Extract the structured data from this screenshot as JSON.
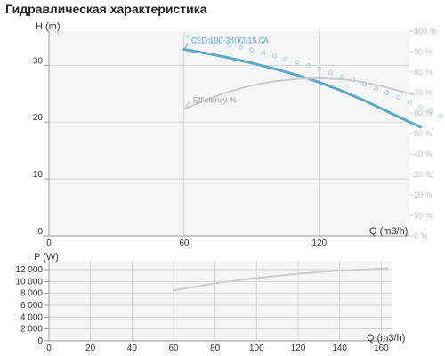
{
  "page_title": "Гидравлическая характеристика",
  "chart_data": [
    {
      "type": "line",
      "ylabel": "H (m)",
      "xlabel": "Q (m3/h)",
      "xlim": [
        0,
        160
      ],
      "ylim": [
        0,
        36
      ],
      "x_ticks": [
        0,
        60,
        120
      ],
      "y_ticks": [
        0,
        10,
        20,
        30
      ],
      "y2_ticks": [
        "0 %",
        "10 %",
        "20 %",
        "30 %",
        "40 %",
        "50 %",
        "60 %",
        "70 %",
        "80 %",
        "90 %",
        "100 %"
      ],
      "y2lim": [
        0,
        100
      ],
      "grid": true,
      "series": [
        {
          "name": "CLD 100-340/2/15.0A",
          "axis": "left",
          "style": "solid",
          "color": "#5aaac8",
          "x": [
            60,
            70,
            80,
            90,
            100,
            110,
            120,
            130,
            140,
            150,
            165
          ],
          "y": [
            32.8,
            32.1,
            31.3,
            30.4,
            29.4,
            28.3,
            27.0,
            25.5,
            23.8,
            21.9,
            19.1
          ]
        },
        {
          "name": "Efficiency %",
          "axis": "right",
          "style": "solid",
          "color": "#cccccc",
          "x": [
            60,
            70,
            80,
            90,
            100,
            110,
            120,
            130,
            140,
            150,
            162
          ],
          "y": [
            62,
            66.5,
            70.5,
            73.5,
            75.5,
            76.7,
            77,
            76.5,
            75,
            72.5,
            69
          ]
        },
        {
          "name": "",
          "axis": "left",
          "style": "dotted",
          "color": "#9fd4ea",
          "x": [
            62,
            75,
            90,
            105,
            120,
            135,
            150,
            165,
            178
          ],
          "y": [
            35.0,
            34.0,
            32.7,
            31.1,
            29.4,
            27.4,
            25.2,
            22.7,
            20.3
          ]
        }
      ]
    },
    {
      "type": "line",
      "ylabel": "P (W)",
      "xlabel": "Q (m3/h)",
      "xlim": [
        0,
        165
      ],
      "ylim": [
        0,
        13500
      ],
      "x_ticks": [
        0,
        20,
        40,
        60,
        80,
        100,
        120,
        140,
        160
      ],
      "y_ticks": [
        0,
        2000,
        4000,
        6000,
        8000,
        10000,
        12000
      ],
      "y_tick_labels": [
        "0",
        "2 000",
        "4 000",
        "6 000",
        "8 000",
        "10 000",
        "12 000"
      ],
      "grid": true,
      "series": [
        {
          "name": "",
          "color": "#cccccc",
          "x": [
            60,
            80,
            100,
            120,
            140,
            163
          ],
          "y": [
            8500,
            9700,
            10600,
            11300,
            11850,
            12200
          ]
        }
      ]
    }
  ]
}
